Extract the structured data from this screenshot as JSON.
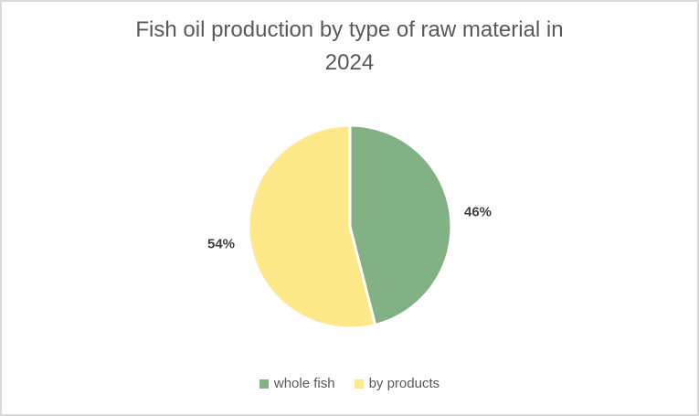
{
  "frame": {
    "border_color": "#d9d9d9",
    "background_color": "#ffffff"
  },
  "title": {
    "full_text": "Fish oil production by type of raw material in 2024",
    "lines": [
      "Fish oil production by type of raw material in",
      "2024"
    ],
    "color": "#595959"
  },
  "chart_data": {
    "type": "pie",
    "title": "Fish oil production by type of raw material in 2024",
    "categories": [
      "whole fish",
      "by products"
    ],
    "values": [
      46,
      54
    ],
    "unit": "%",
    "data_labels": [
      "46%",
      "54%"
    ],
    "slice_colors": [
      "#81b184",
      "#fde88a"
    ],
    "separator_color": "#ffffff",
    "start_angle_deg": 0,
    "direction": "clockwise",
    "legend_position": "bottom",
    "data_label_color": "#404040"
  },
  "legend": {
    "items": [
      {
        "label": "whole fish",
        "color": "#81b184"
      },
      {
        "label": "by products",
        "color": "#fde88a"
      }
    ],
    "text_color": "#595959"
  }
}
